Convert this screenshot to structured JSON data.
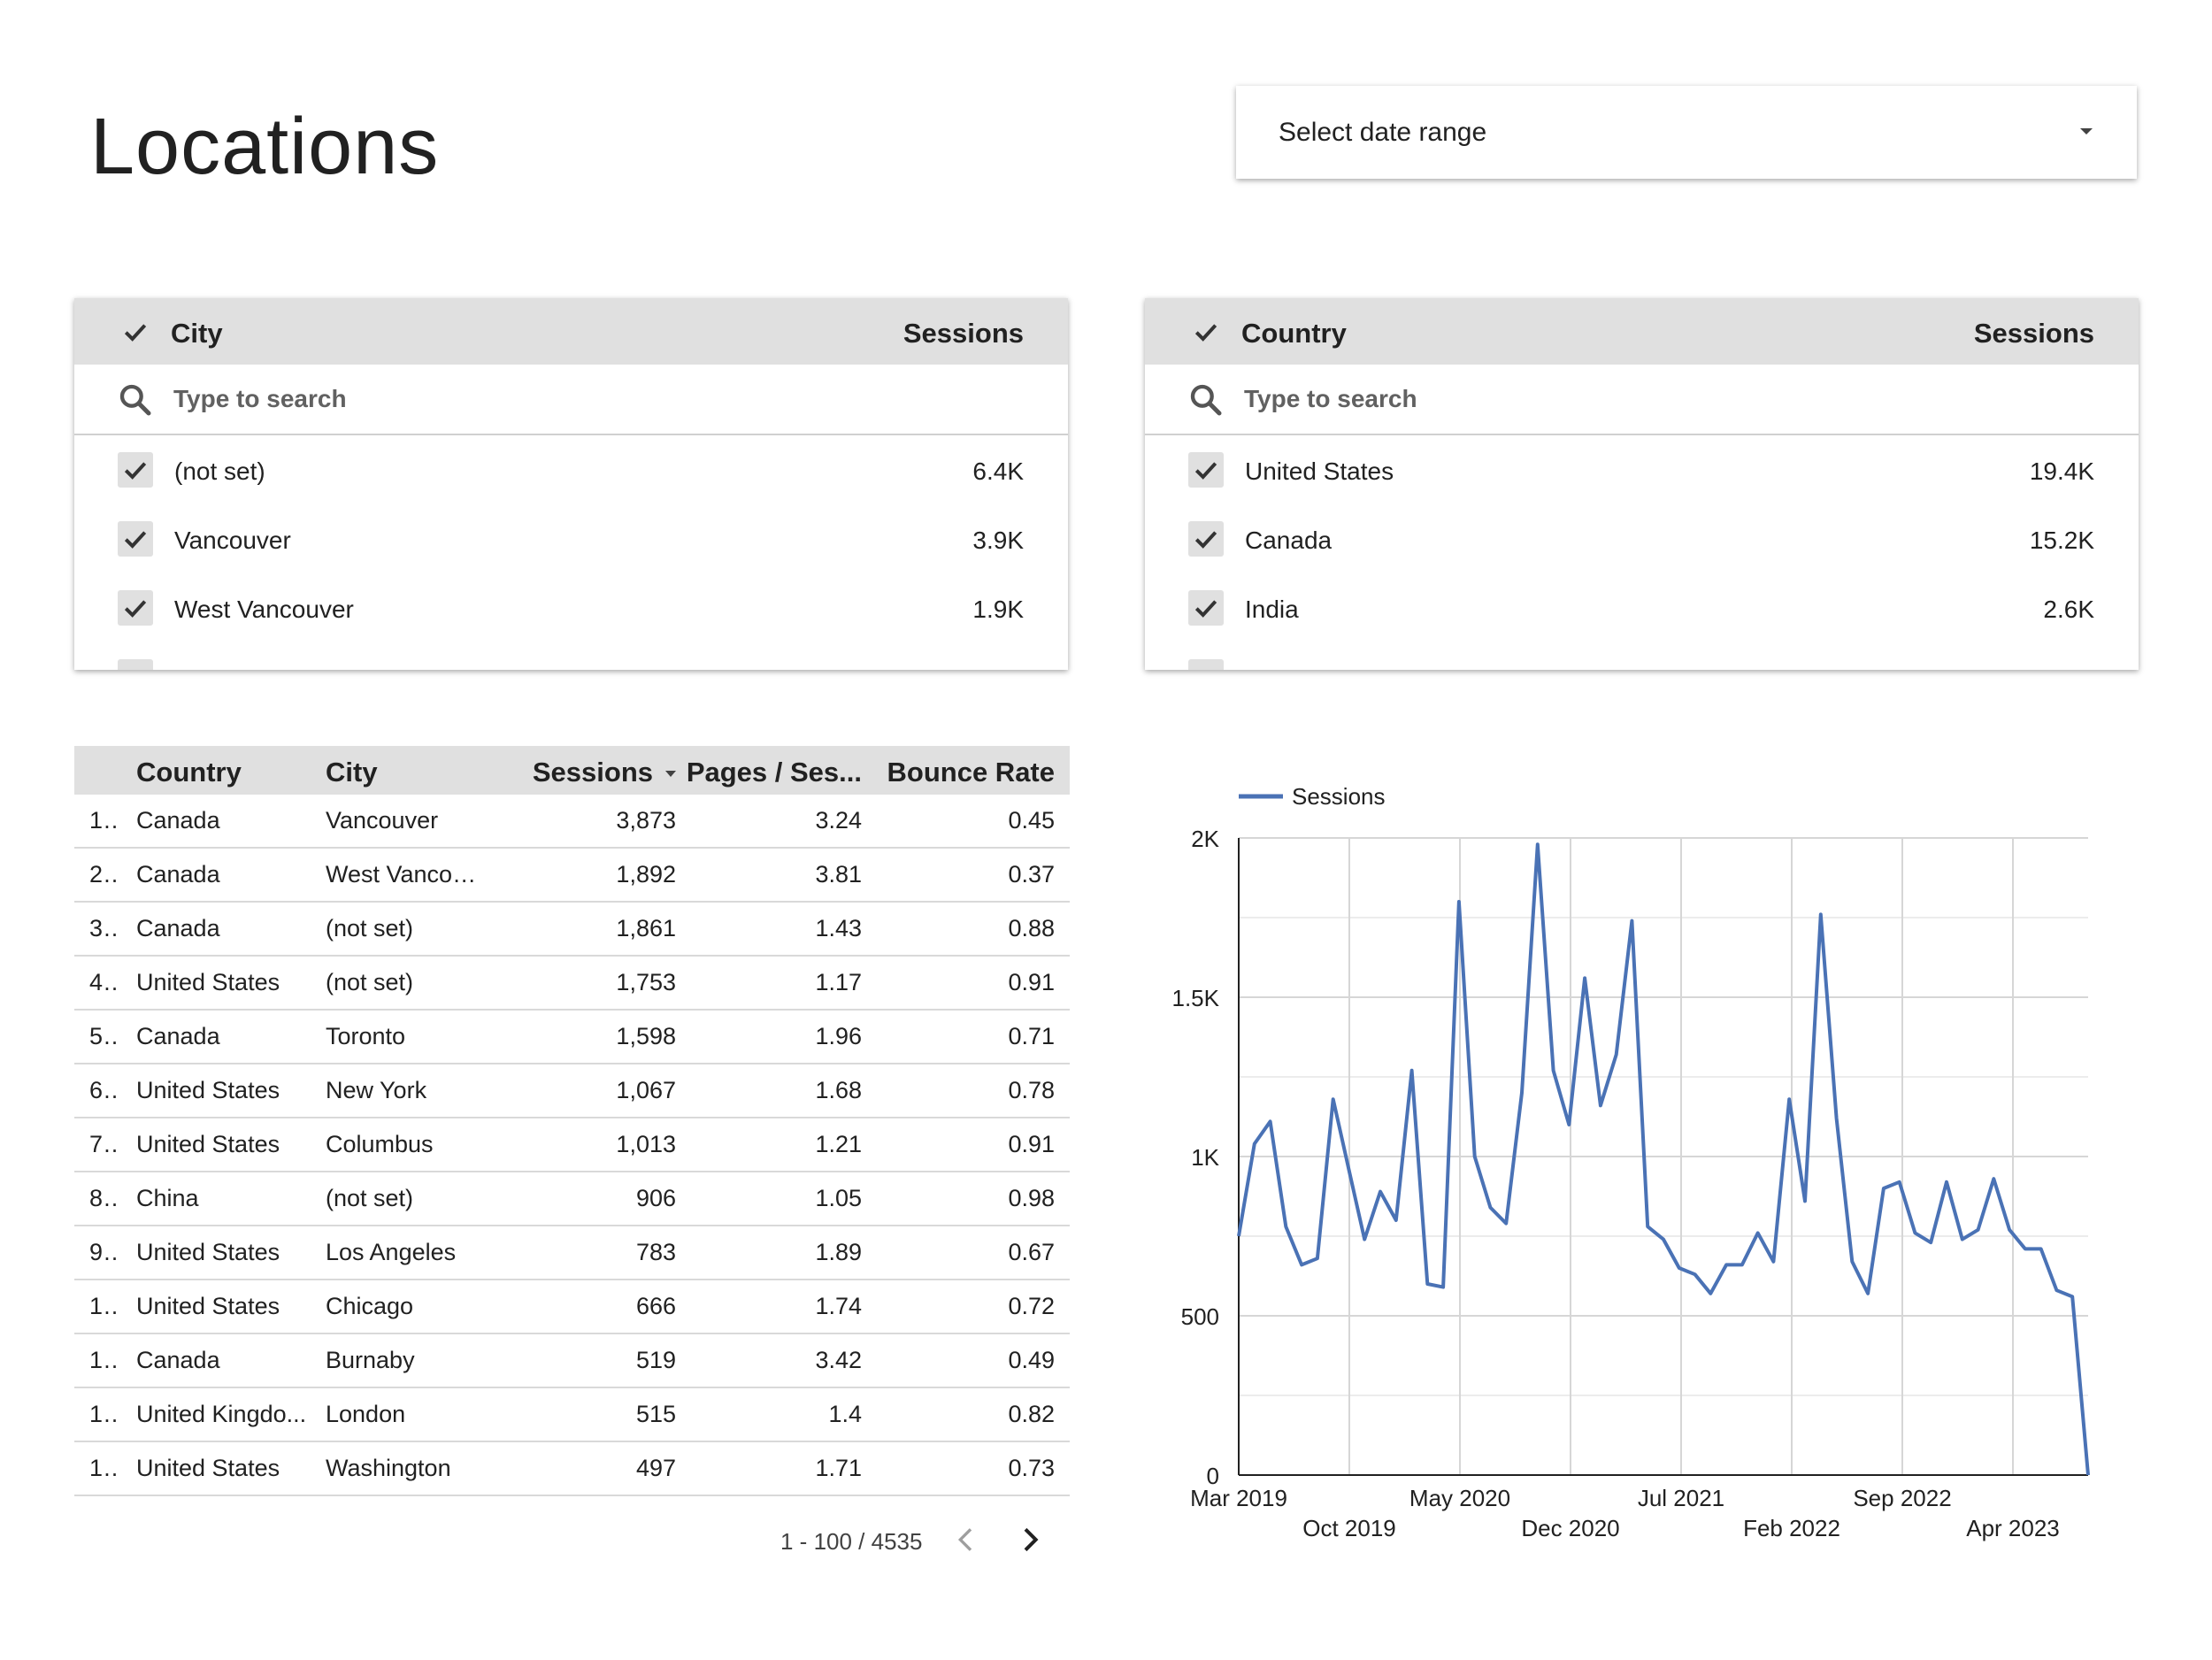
{
  "page": {
    "title": "Locations"
  },
  "date_range": {
    "placeholder": "Select date range"
  },
  "city_filter": {
    "header_label": "City",
    "header_metric": "Sessions",
    "search_placeholder": "Type to search",
    "items": [
      {
        "label": "(not set)",
        "value": "6.4K"
      },
      {
        "label": "Vancouver",
        "value": "3.9K"
      },
      {
        "label": "West Vancouver",
        "value": "1.9K"
      }
    ]
  },
  "country_filter": {
    "header_label": "Country",
    "header_metric": "Sessions",
    "search_placeholder": "Type to search",
    "items": [
      {
        "label": "United States",
        "value": "19.4K"
      },
      {
        "label": "Canada",
        "value": "15.2K"
      },
      {
        "label": "India",
        "value": "2.6K"
      }
    ]
  },
  "table": {
    "columns": [
      "Country",
      "City",
      "Sessions",
      "Pages / Ses...",
      "Bounce Rate"
    ],
    "rows": [
      {
        "idx": "1...",
        "country": "Canada",
        "city": "Vancouver",
        "sessions": "3,873",
        "pps": "3.24",
        "bounce": "0.45"
      },
      {
        "idx": "2...",
        "country": "Canada",
        "city": "West Vancou...",
        "sessions": "1,892",
        "pps": "3.81",
        "bounce": "0.37"
      },
      {
        "idx": "3...",
        "country": "Canada",
        "city": "(not set)",
        "sessions": "1,861",
        "pps": "1.43",
        "bounce": "0.88"
      },
      {
        "idx": "4...",
        "country": "United States",
        "city": "(not set)",
        "sessions": "1,753",
        "pps": "1.17",
        "bounce": "0.91"
      },
      {
        "idx": "5...",
        "country": "Canada",
        "city": "Toronto",
        "sessions": "1,598",
        "pps": "1.96",
        "bounce": "0.71"
      },
      {
        "idx": "6...",
        "country": "United States",
        "city": "New York",
        "sessions": "1,067",
        "pps": "1.68",
        "bounce": "0.78"
      },
      {
        "idx": "7...",
        "country": "United States",
        "city": "Columbus",
        "sessions": "1,013",
        "pps": "1.21",
        "bounce": "0.91"
      },
      {
        "idx": "8...",
        "country": "China",
        "city": "(not set)",
        "sessions": "906",
        "pps": "1.05",
        "bounce": "0.98"
      },
      {
        "idx": "9...",
        "country": "United States",
        "city": "Los Angeles",
        "sessions": "783",
        "pps": "1.89",
        "bounce": "0.67"
      },
      {
        "idx": "1...",
        "country": "United States",
        "city": "Chicago",
        "sessions": "666",
        "pps": "1.74",
        "bounce": "0.72"
      },
      {
        "idx": "1...",
        "country": "Canada",
        "city": "Burnaby",
        "sessions": "519",
        "pps": "3.42",
        "bounce": "0.49"
      },
      {
        "idx": "1...",
        "country": "United Kingdo...",
        "city": "London",
        "sessions": "515",
        "pps": "1.4",
        "bounce": "0.82"
      },
      {
        "idx": "1...",
        "country": "United States",
        "city": "Washington",
        "sessions": "497",
        "pps": "1.71",
        "bounce": "0.73"
      }
    ],
    "pagination": "1 - 100 / 4535"
  },
  "chart_data": {
    "type": "line",
    "series": [
      {
        "name": "Sessions",
        "color": "#4a72b5",
        "values": [
          750,
          1040,
          1110,
          780,
          660,
          680,
          1180,
          960,
          740,
          890,
          800,
          1270,
          600,
          590,
          1800,
          1000,
          840,
          790,
          1200,
          1980,
          1270,
          1100,
          1560,
          1160,
          1320,
          1740,
          780,
          740,
          650,
          630,
          570,
          660,
          660,
          760,
          670,
          1180,
          860,
          1760,
          1120,
          670,
          570,
          900,
          920,
          760,
          730,
          920,
          740,
          770,
          930,
          770,
          710,
          710,
          580,
          560,
          0
        ]
      }
    ],
    "x_tick_labels": [
      "Mar 2019",
      "Oct 2019",
      "May 2020",
      "Dec 2020",
      "Jul 2021",
      "Feb 2022",
      "Sep 2022",
      "Apr 2023"
    ],
    "y_tick_labels": [
      "0",
      "500",
      "1K",
      "1.5K",
      "2K"
    ],
    "ylim": [
      0,
      2000
    ],
    "legend_position": "top-left",
    "grid": true
  }
}
